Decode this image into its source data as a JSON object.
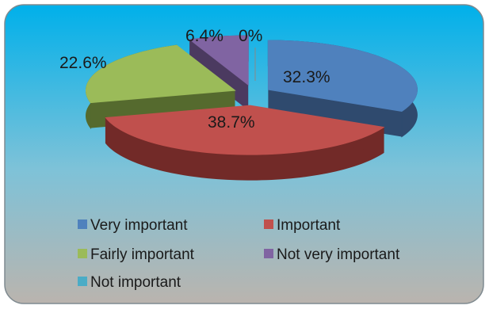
{
  "chart_data": {
    "type": "pie",
    "three_d": true,
    "title": "",
    "slices": [
      {
        "label": "Very important",
        "value": 32.3,
        "data_label": "32.3%",
        "color": "#4F81BD",
        "side_color": "#2F4A6E"
      },
      {
        "label": "Important",
        "value": 38.7,
        "data_label": "38.7%",
        "color": "#C0504D",
        "side_color": "#722A28"
      },
      {
        "label": "Fairly important",
        "value": 22.6,
        "data_label": "22.6%",
        "color": "#9BBB59",
        "side_color": "#556A2E"
      },
      {
        "label": "Not very important",
        "value": 6.4,
        "data_label": "6.4%",
        "color": "#8064A2",
        "side_color": "#4B3A60"
      },
      {
        "label": "Not important",
        "value": 0,
        "data_label": "0%",
        "color": "#4BACC6",
        "side_color": "#2A6A7A"
      }
    ],
    "legend_position": "bottom",
    "background_gradient": [
      "#00B0EA",
      "#9CC3D0",
      "#B9B3AD"
    ]
  }
}
